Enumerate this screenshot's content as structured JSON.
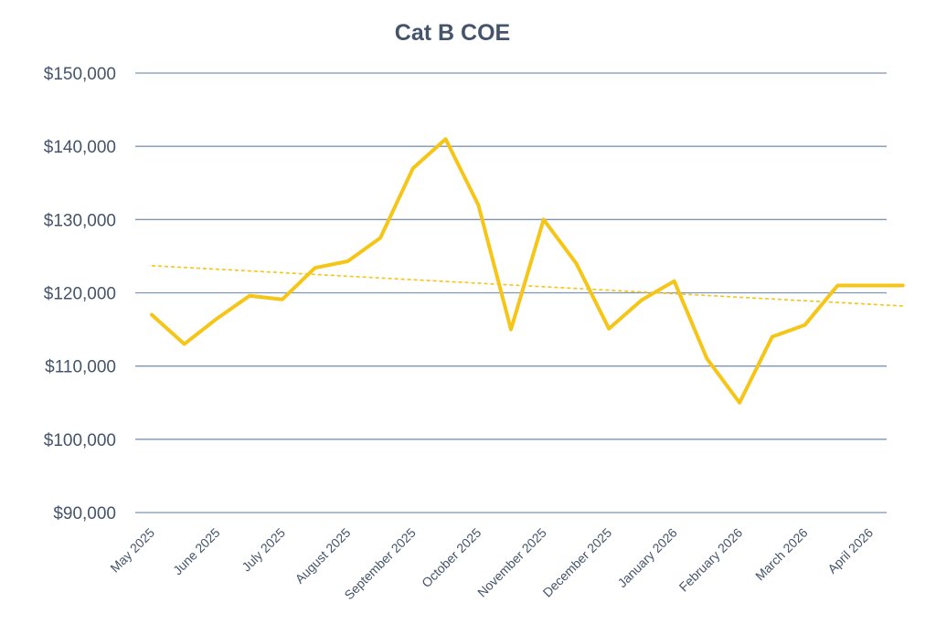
{
  "chart_data": {
    "type": "line",
    "title": "Cat B COE",
    "xlabel": "",
    "ylabel": "",
    "ylim": [
      90000,
      150000
    ],
    "y_ticks": [
      90000,
      100000,
      110000,
      120000,
      130000,
      140000,
      150000
    ],
    "y_tick_labels": [
      "$90,000",
      "$100,000",
      "$110,000",
      "$120,000",
      "$130,000",
      "$140,000",
      "$150,000"
    ],
    "x_tick_labels": [
      "May 2025",
      "June 2025",
      "July 2025",
      "August 2025",
      "September 2025",
      "October 2025",
      "November 2025",
      "December 2025",
      "January 2026",
      "February 2026",
      "March 2026",
      "April 2026"
    ],
    "x": [
      0,
      0.5,
      1,
      1.5,
      2,
      2.5,
      3,
      3.5,
      4,
      4.5,
      5,
      5.5,
      6,
      6.5,
      7,
      7.5,
      8,
      8.5,
      9,
      9.5,
      10,
      10.5,
      11,
      11.5
    ],
    "series": [
      {
        "values": [
          117000,
          113000,
          116500,
          119600,
          119100,
          123400,
          124300,
          127500,
          137000,
          141000,
          132000,
          115000,
          130000,
          124000,
          115100,
          119000,
          121600,
          111000,
          105000,
          114000,
          115600,
          121000,
          121000,
          121000
        ],
        "color": "#f5c518"
      }
    ],
    "trendline": {
      "style": "dashed",
      "start": 123700,
      "end": 118200,
      "color": "#f5c518"
    },
    "grid": true,
    "grid_color": "#7f94b3",
    "text_color": "#44546a",
    "legend": "none"
  }
}
